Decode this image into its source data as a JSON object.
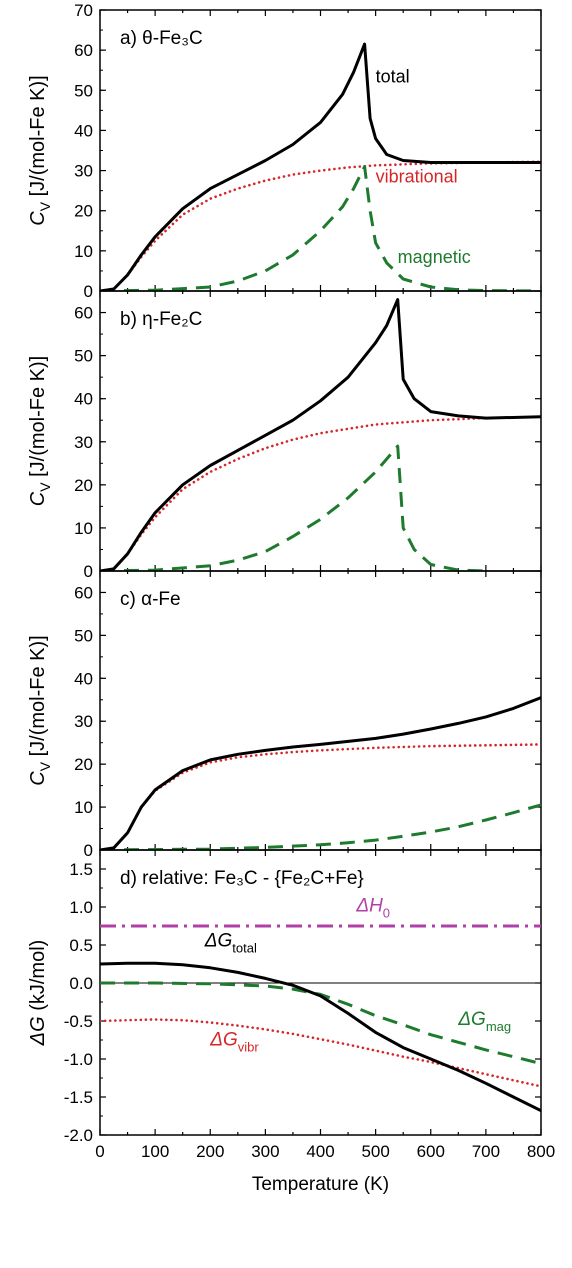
{
  "colors": {
    "total": "#000000",
    "vibrational": "#d62728",
    "magnetic": "#1e7b2e",
    "enthalpy": "#b03fa8",
    "zero_line": "#000000"
  },
  "chart_data": [
    {
      "id": "a",
      "type": "line",
      "panel_label": "a) θ-Fe₃C",
      "ylabel": "Cᵥ [J/(mol-Fe K)]",
      "ylabel_main": "C",
      "ylabel_sub": "V",
      "ylabel_rest": " [J/(mol-Fe K)]",
      "ylim": [
        0,
        70
      ],
      "yticks": [
        "0",
        "10",
        "20",
        "30",
        "40",
        "50",
        "60",
        "70"
      ],
      "series": [
        {
          "key": "total",
          "name": "total",
          "style": "solid",
          "x": [
            0,
            25,
            50,
            75,
            100,
            150,
            200,
            250,
            300,
            350,
            400,
            440,
            460,
            480,
            490,
            500,
            520,
            550,
            600,
            650,
            700,
            800
          ],
          "y": [
            0,
            0.5,
            4,
            9,
            13.5,
            20.5,
            25.5,
            29,
            32.5,
            36.5,
            42,
            49,
            54.5,
            61.5,
            43,
            38,
            34,
            32.5,
            32,
            32,
            32,
            32
          ]
        },
        {
          "key": "vibrational",
          "name": "vibrational",
          "style": "dotted",
          "x": [
            0,
            25,
            50,
            75,
            100,
            150,
            200,
            250,
            300,
            350,
            400,
            450,
            500,
            600,
            700,
            800
          ],
          "y": [
            0,
            0.5,
            4,
            8.5,
            12.5,
            19,
            23,
            25.5,
            27.5,
            29,
            30,
            30.8,
            31.3,
            31.8,
            32,
            32.2
          ]
        },
        {
          "key": "magnetic",
          "name": "magnetic",
          "style": "dashed",
          "x": [
            0,
            100,
            200,
            250,
            300,
            350,
            400,
            440,
            460,
            480,
            490,
            500,
            520,
            550,
            600,
            650,
            700,
            800
          ],
          "y": [
            0,
            0.2,
            1,
            2.5,
            5,
            9,
            15,
            21,
            25.5,
            31,
            20,
            12,
            7,
            3,
            1,
            0.3,
            0.1,
            0
          ]
        }
      ],
      "annotations": [
        {
          "series": "total",
          "text": "total",
          "x": 500,
          "y": 52
        },
        {
          "series": "vibrational",
          "text": "vibrational",
          "x": 500,
          "y": 27
        },
        {
          "series": "magnetic",
          "text": "magnetic",
          "x": 540,
          "y": 7
        }
      ]
    },
    {
      "id": "b",
      "type": "line",
      "panel_label": "b) η-Fe₂C",
      "ylabel": "Cᵥ [J/(mol-Fe K)]",
      "ylabel_main": "C",
      "ylabel_sub": "V",
      "ylabel_rest": " [J/(mol-Fe K)]",
      "ylim": [
        0,
        65
      ],
      "yticks": [
        "0",
        "10",
        "20",
        "30",
        "40",
        "50",
        "60"
      ],
      "series": [
        {
          "key": "total",
          "style": "solid",
          "x": [
            0,
            25,
            50,
            75,
            100,
            150,
            200,
            250,
            300,
            350,
            400,
            450,
            500,
            520,
            540,
            550,
            570,
            600,
            650,
            700,
            800
          ],
          "y": [
            0,
            0.5,
            4,
            9,
            13.5,
            20,
            24.5,
            28,
            31.5,
            35,
            39.5,
            45,
            53,
            57,
            63,
            44.5,
            40,
            37,
            36,
            35.5,
            35.8
          ]
        },
        {
          "key": "vibrational",
          "style": "dotted",
          "x": [
            0,
            25,
            50,
            75,
            100,
            150,
            200,
            250,
            300,
            350,
            400,
            450,
            500,
            600,
            700,
            800
          ],
          "y": [
            0,
            0.5,
            4,
            8.5,
            12.5,
            19,
            23,
            26,
            28.5,
            30.5,
            32,
            33,
            34,
            35,
            35.5,
            35.8
          ]
        },
        {
          "key": "magnetic",
          "style": "dashed",
          "x": [
            0,
            100,
            200,
            250,
            300,
            350,
            400,
            450,
            500,
            520,
            540,
            550,
            570,
            600,
            650,
            700
          ],
          "y": [
            0,
            0.2,
            1.2,
            2.5,
            4.5,
            8,
            12,
            17,
            23,
            26,
            29,
            10,
            5,
            1.5,
            0.2,
            0
          ]
        }
      ],
      "annotations": []
    },
    {
      "id": "c",
      "type": "line",
      "panel_label": "c) α-Fe",
      "ylabel": "Cᵥ [J/(mol-Fe K)]",
      "ylabel_main": "C",
      "ylabel_sub": "V",
      "ylabel_rest": " [J/(mol-Fe K)]",
      "ylim": [
        0,
        65
      ],
      "yticks": [
        "0",
        "10",
        "20",
        "30",
        "40",
        "50",
        "60"
      ],
      "series": [
        {
          "key": "total",
          "style": "solid",
          "x": [
            0,
            25,
            50,
            75,
            100,
            150,
            200,
            250,
            300,
            350,
            400,
            450,
            500,
            550,
            600,
            650,
            700,
            750,
            800
          ],
          "y": [
            0,
            0.5,
            4,
            10,
            14,
            18.5,
            21,
            22.3,
            23.2,
            24,
            24.6,
            25.3,
            26,
            27,
            28.2,
            29.5,
            31,
            33,
            35.5
          ]
        },
        {
          "key": "vibrational",
          "style": "dotted",
          "x": [
            0,
            25,
            50,
            75,
            100,
            150,
            200,
            250,
            300,
            350,
            400,
            500,
            600,
            700,
            800
          ],
          "y": [
            0,
            0.5,
            4,
            10,
            13.8,
            18,
            20.4,
            21.6,
            22.3,
            22.8,
            23.2,
            23.8,
            24.2,
            24.4,
            24.6
          ]
        },
        {
          "key": "magnetic",
          "style": "dashed",
          "x": [
            0,
            200,
            300,
            400,
            450,
            500,
            550,
            600,
            650,
            700,
            750,
            800
          ],
          "y": [
            0,
            0.2,
            0.6,
            1.2,
            1.7,
            2.3,
            3.2,
            4.2,
            5.4,
            7,
            8.7,
            10.5
          ]
        }
      ],
      "annotations": []
    },
    {
      "id": "d",
      "type": "line",
      "panel_label": "d) relative: Fe₃C - {Fe₂C+Fe}",
      "ylabel": "ΔG (kJ/mol)",
      "ylabel_main": "ΔG",
      "ylabel_rest": " (kJ/mol)",
      "xlabel": "Temperature (K)",
      "xlim": [
        0,
        800
      ],
      "xticks": [
        "0",
        "100",
        "200",
        "300",
        "400",
        "500",
        "600",
        "700",
        "800"
      ],
      "ylim": [
        -2.0,
        1.75
      ],
      "yticks": [
        "-2.0",
        "-1.5",
        "-1.0",
        "-0.5",
        "0.0",
        "0.5",
        "1.0",
        "1.5"
      ],
      "series": [
        {
          "key": "enthalpy",
          "name": "ΔH₀",
          "style": "dashdot",
          "x": [
            0,
            800
          ],
          "y": [
            0.75,
            0.75
          ]
        },
        {
          "key": "total",
          "name": "ΔG_total",
          "style": "solid",
          "x": [
            0,
            50,
            100,
            150,
            200,
            250,
            300,
            350,
            400,
            450,
            500,
            550,
            600,
            650,
            700,
            750,
            800
          ],
          "y": [
            0.25,
            0.26,
            0.26,
            0.24,
            0.2,
            0.14,
            0.06,
            -0.03,
            -0.17,
            -0.4,
            -0.65,
            -0.85,
            -1.0,
            -1.15,
            -1.32,
            -1.5,
            -1.68
          ]
        },
        {
          "key": "magnetic",
          "name": "ΔG_mag",
          "style": "dashed",
          "x": [
            0,
            100,
            200,
            300,
            350,
            400,
            450,
            500,
            550,
            600,
            650,
            700,
            750,
            800
          ],
          "y": [
            0,
            0,
            -0.01,
            -0.04,
            -0.08,
            -0.15,
            -0.28,
            -0.43,
            -0.55,
            -0.68,
            -0.78,
            -0.88,
            -0.97,
            -1.06
          ]
        },
        {
          "key": "vibrational",
          "name": "ΔG_vibr",
          "style": "dotted",
          "x": [
            0,
            50,
            100,
            150,
            200,
            250,
            300,
            350,
            400,
            450,
            500,
            550,
            600,
            650,
            700,
            750,
            800
          ],
          "y": [
            -0.5,
            -0.49,
            -0.48,
            -0.49,
            -0.52,
            -0.56,
            -0.61,
            -0.67,
            -0.74,
            -0.81,
            -0.89,
            -0.97,
            -1.04,
            -1.12,
            -1.2,
            -1.28,
            -1.36
          ]
        }
      ],
      "annotations": [
        {
          "series": "enthalpy",
          "main": "ΔH",
          "sub": "0",
          "x": 465,
          "y": 0.94
        },
        {
          "series": "total",
          "main": "ΔG",
          "sub": "total",
          "x": 190,
          "y": 0.48
        },
        {
          "series": "magnetic",
          "main": "ΔG",
          "sub": "mag",
          "x": 650,
          "y": -0.55
        },
        {
          "series": "vibrational",
          "main": "ΔG",
          "sub": "vibr",
          "x": 200,
          "y": -0.82
        }
      ]
    }
  ]
}
